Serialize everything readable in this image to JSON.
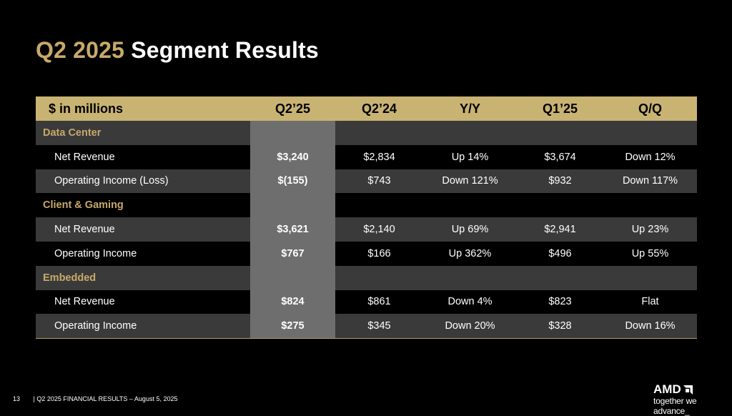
{
  "title": {
    "quarter": "Q2 2025",
    "rest": "Segment Results"
  },
  "table": {
    "headers": [
      "$ in millions",
      "Q2’25",
      "Q2’24",
      "Y/Y",
      "Q1’25",
      "Q/Q"
    ],
    "rows": [
      {
        "type": "category",
        "label": "Data Center",
        "values": [
          "",
          "",
          "",
          "",
          ""
        ]
      },
      {
        "type": "item",
        "label": "Net Revenue",
        "values": [
          "$3,240",
          "$2,834",
          "Up 14%",
          "$3,674",
          "Down 12%"
        ]
      },
      {
        "type": "item",
        "label": "Operating Income (Loss)",
        "values": [
          "$(155)",
          "$743",
          "Down 121%",
          "$932",
          "Down 117%"
        ]
      },
      {
        "type": "category",
        "label": "Client & Gaming",
        "values": [
          "",
          "",
          "",
          "",
          ""
        ]
      },
      {
        "type": "item",
        "label": "Net Revenue",
        "values": [
          "$3,621",
          "$2,140",
          "Up 69%",
          "$2,941",
          "Up 23%"
        ]
      },
      {
        "type": "item",
        "label": "Operating Income",
        "values": [
          "$767",
          "$166",
          "Up 362%",
          "$496",
          "Up 55%"
        ]
      },
      {
        "type": "category",
        "label": "Embedded",
        "values": [
          "",
          "",
          "",
          "",
          ""
        ]
      },
      {
        "type": "item",
        "label": "Net Revenue",
        "values": [
          "$824",
          "$861",
          "Down 4%",
          "$823",
          "Flat"
        ]
      },
      {
        "type": "item",
        "label": "Operating Income",
        "values": [
          "$275",
          "$345",
          "Down 20%",
          "$328",
          "Down 16%"
        ]
      }
    ]
  },
  "footer": {
    "page": "13",
    "text": "|  Q2 2025 FINANCIAL RESULTS – August 5, 2025"
  },
  "logo": {
    "brand": "AMD",
    "tagline": "together we advance_"
  },
  "colors": {
    "accent": "#c8a96a",
    "header_bg": "#c8b373",
    "highlight": "#6e6e6e",
    "stripe": "#3a3a3a",
    "background": "#000000"
  }
}
